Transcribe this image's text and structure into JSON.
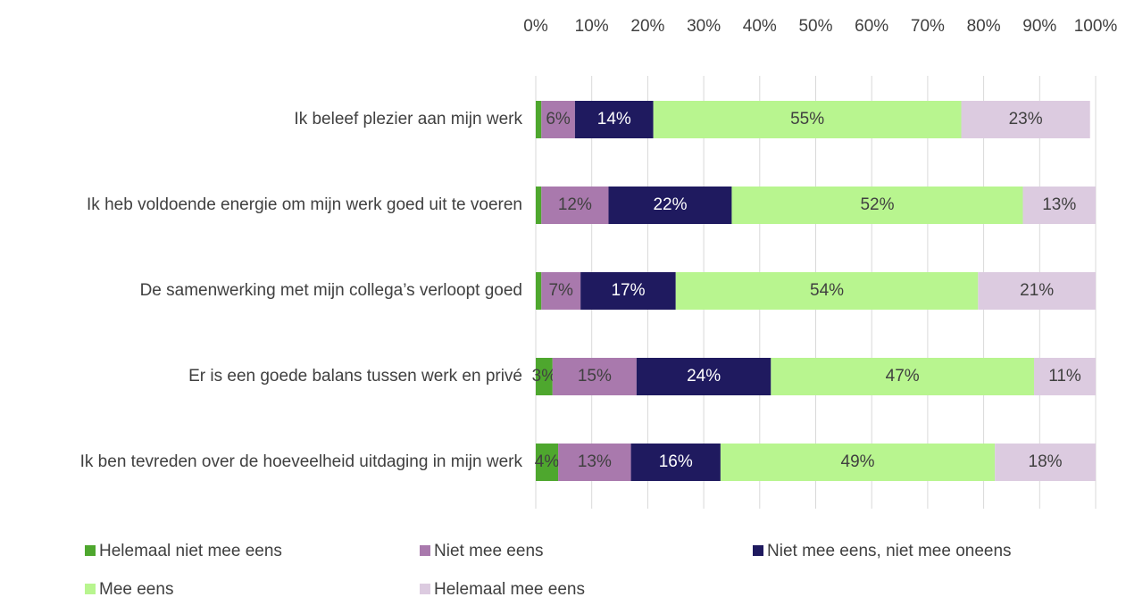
{
  "chart_data": {
    "type": "stacked_bar_horizontal",
    "categories": [
      "Ik beleef plezier aan mijn werk",
      "Ik heb voldoende energie om mijn werk goed uit te voeren",
      "De samenwerking met mijn collega’s verloopt goed",
      "Er is een goede balans tussen werk en privé",
      "Ik ben tevreden over de hoeveelheid uitdaging in mijn werk"
    ],
    "series": [
      {
        "name": "Helemaal niet mee eens",
        "color": "#4ea72e",
        "values": [
          1,
          1,
          1,
          3,
          4
        ],
        "value_labels": [
          null,
          null,
          null,
          "3%",
          "4%"
        ]
      },
      {
        "name": "Niet mee eens",
        "color": "#a979ad",
        "values": [
          6,
          12,
          7,
          15,
          13
        ],
        "value_labels": [
          "6%",
          "12%",
          "7%",
          "15%",
          "13%"
        ]
      },
      {
        "name": "Niet mee eens, niet mee oneens",
        "color": "#1f1a5f",
        "values": [
          14,
          22,
          17,
          24,
          16
        ],
        "value_labels": [
          "14%",
          "22%",
          "17%",
          "24%",
          "16%"
        ]
      },
      {
        "name": "Mee eens",
        "color": "#b8f58f",
        "values": [
          55,
          52,
          54,
          47,
          49
        ],
        "value_labels": [
          "55%",
          "52%",
          "54%",
          "47%",
          "49%"
        ]
      },
      {
        "name": "Helemaal mee eens",
        "color": "#dccbe0",
        "values": [
          23,
          13,
          21,
          11,
          18
        ],
        "value_labels": [
          "23%",
          "13%",
          "21%",
          "11%",
          "18%"
        ]
      }
    ],
    "xlim": [
      0,
      100
    ],
    "xticks": [
      {
        "value": 0,
        "label": "0%"
      },
      {
        "value": 10,
        "label": "10%"
      },
      {
        "value": 20,
        "label": "20%"
      },
      {
        "value": 30,
        "label": "30%"
      },
      {
        "value": 40,
        "label": "40%"
      },
      {
        "value": 50,
        "label": "50%"
      },
      {
        "value": 60,
        "label": "60%"
      },
      {
        "value": 70,
        "label": "70%"
      },
      {
        "value": 80,
        "label": "80%"
      },
      {
        "value": 90,
        "label": "90%"
      },
      {
        "value": 100,
        "label": "100%"
      }
    ],
    "grid": true
  }
}
